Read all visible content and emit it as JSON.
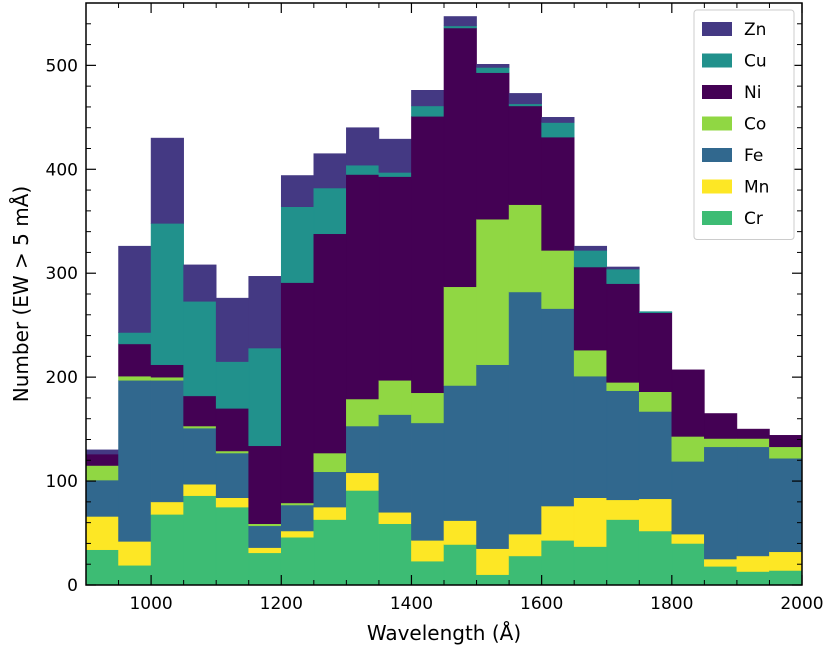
{
  "chart_data": {
    "type": "bar",
    "stacked": true,
    "title": "",
    "xlabel": "Wavelength (Å)",
    "ylabel": "Number  (EW > 5 mÅ)",
    "xlim": [
      900,
      2000
    ],
    "ylim": [
      0,
      560
    ],
    "xticks": [
      1000,
      1200,
      1400,
      1600,
      1800,
      2000
    ],
    "yticks": [
      0,
      100,
      200,
      300,
      400,
      500
    ],
    "xtick_labels": [
      "1000",
      "1200",
      "1400",
      "1600",
      "1800",
      "2000"
    ],
    "ytick_labels": [
      "0",
      "100",
      "200",
      "300",
      "400",
      "500"
    ],
    "bin_width": 50,
    "x": [
      900,
      950,
      1000,
      1050,
      1100,
      1150,
      1200,
      1250,
      1300,
      1350,
      1400,
      1450,
      1500,
      1550,
      1600,
      1650,
      1700,
      1750,
      1800,
      1850,
      1900,
      1950
    ],
    "legend_position": "top-right",
    "grid": false,
    "series": [
      {
        "name": "Cr",
        "color": "#3dbc74",
        "values": [
          34,
          19,
          68,
          86,
          75,
          31,
          46,
          63,
          91,
          59,
          23,
          39,
          10,
          28,
          43,
          37,
          63,
          52,
          40,
          18,
          13,
          14
        ]
      },
      {
        "name": "Mn",
        "color": "#fde725",
        "values": [
          32,
          23,
          12,
          11,
          9,
          5,
          6,
          12,
          17,
          11,
          20,
          23,
          25,
          21,
          33,
          47,
          19,
          31,
          9,
          7,
          15,
          18
        ]
      },
      {
        "name": "Fe",
        "color": "#31688e",
        "values": [
          35,
          155,
          117,
          54,
          43,
          21,
          25,
          34,
          45,
          94,
          113,
          130,
          177,
          233,
          190,
          117,
          105,
          84,
          70,
          108,
          105,
          90
        ]
      },
      {
        "name": "Co",
        "color": "#90d743",
        "values": [
          14,
          4,
          3,
          2,
          2,
          2,
          2,
          18,
          26,
          33,
          29,
          95,
          140,
          84,
          56,
          25,
          8,
          19,
          24,
          8,
          8,
          11
        ]
      },
      {
        "name": "Ni",
        "color": "#440154",
        "values": [
          11,
          31,
          12,
          29,
          41,
          75,
          212,
          211,
          216,
          196,
          266,
          249,
          141,
          95,
          109,
          80,
          95,
          76,
          64,
          24,
          9,
          11
        ]
      },
      {
        "name": "Cu",
        "color": "#21918c",
        "values": [
          0,
          11,
          136,
          91,
          45,
          94,
          73,
          44,
          9,
          4,
          10,
          2,
          5,
          2,
          14,
          16,
          14,
          1,
          0,
          0,
          0,
          0
        ]
      },
      {
        "name": "Zn",
        "color": "#443983",
        "values": [
          4,
          83,
          82,
          35,
          61,
          69,
          30,
          33,
          36,
          32,
          15,
          9,
          3,
          10,
          5,
          4,
          2,
          0,
          0,
          0,
          0,
          0
        ]
      }
    ]
  }
}
